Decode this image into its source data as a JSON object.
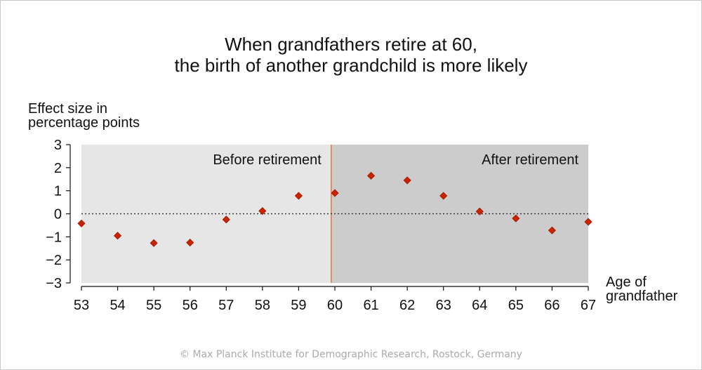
{
  "title_line1": "When grandfathers retire at 60,",
  "title_line2": "the birth of another grandchild is more likely",
  "credit": "© Max Planck Institute for Demographic Research, Rostock, Germany",
  "chart_data": {
    "type": "scatter",
    "title": "When grandfathers retire at 60, the birth of another grandchild is more likely",
    "ylabel_line1": "Effect size in",
    "ylabel_line2": "percentage points",
    "xlabel_line1": "Age of",
    "xlabel_line2": "grandfather",
    "x": [
      53,
      54,
      55,
      56,
      57,
      58,
      59,
      60,
      61,
      62,
      63,
      64,
      65,
      66,
      67
    ],
    "y": [
      -0.42,
      -0.95,
      -1.27,
      -1.25,
      -0.25,
      0.12,
      0.78,
      0.9,
      1.65,
      1.45,
      0.78,
      0.1,
      -0.2,
      -0.72,
      -0.35
    ],
    "xlim": [
      53,
      67
    ],
    "ylim": [
      -3,
      3
    ],
    "yticks": [
      "3",
      "2",
      "1",
      "0",
      "−1",
      "−2",
      "−3"
    ],
    "ytick_values": [
      3,
      2,
      1,
      0,
      -1,
      -2,
      -3
    ],
    "xticks": [
      "53",
      "54",
      "55",
      "56",
      "57",
      "58",
      "59",
      "60",
      "61",
      "62",
      "63",
      "64",
      "65",
      "66",
      "67"
    ],
    "regions": [
      {
        "label": "Before retirement",
        "from": 53,
        "to": 59.9,
        "color": "#e6e6e6"
      },
      {
        "label": "After retirement",
        "from": 59.9,
        "to": 67,
        "color": "#cccccc"
      }
    ],
    "retirement_line": 59.9,
    "retirement_line_color": "#e8763c",
    "marker_color": "#cc2200",
    "marker_stroke": "#9a1800",
    "zero_line": "dotted"
  }
}
